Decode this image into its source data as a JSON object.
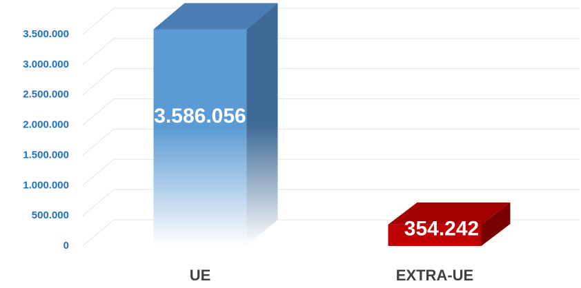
{
  "chart_data": {
    "type": "bar3d",
    "categories": [
      "UE",
      "EXTRA-UE"
    ],
    "values": [
      3586056,
      354242
    ],
    "value_labels": [
      "3.586.056",
      "354.242"
    ],
    "colors": [
      "#5b9bd5",
      "#c00000"
    ],
    "ylim": [
      0,
      3700000
    ],
    "yticks": [
      {
        "value": 0,
        "label": "0"
      },
      {
        "value": 500000,
        "label": "500.000"
      },
      {
        "value": 1000000,
        "label": "1.000.000"
      },
      {
        "value": 1500000,
        "label": "1.500.000"
      },
      {
        "value": 2000000,
        "label": "2.000.000"
      },
      {
        "value": 2500000,
        "label": "2.500.000"
      },
      {
        "value": 3000000,
        "label": "3.000.000"
      },
      {
        "value": 3500000,
        "label": "3.500.000"
      }
    ],
    "grid": true
  }
}
